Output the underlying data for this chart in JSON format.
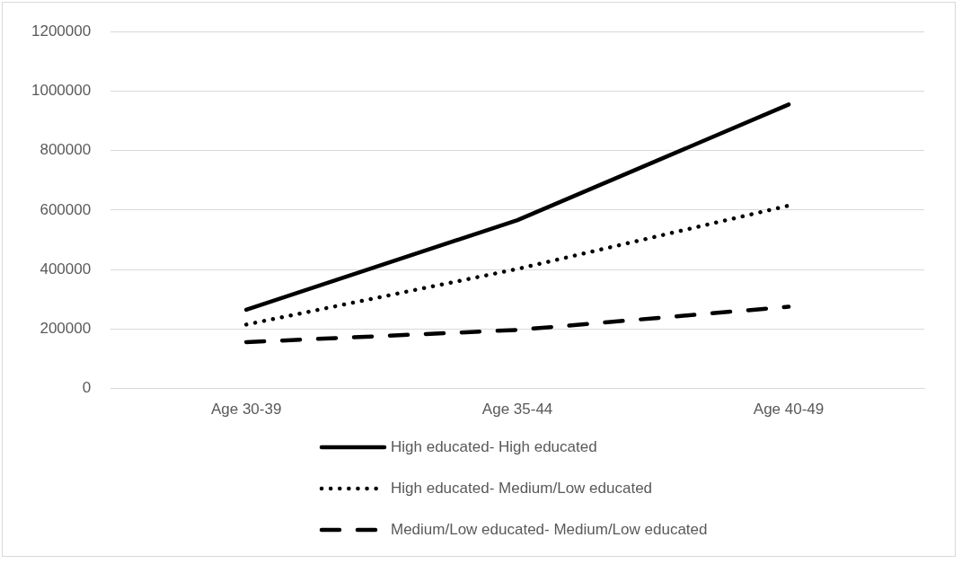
{
  "chart_data": {
    "type": "line",
    "categories": [
      "Age 30-39",
      "Age 35-44",
      "Age 40-49"
    ],
    "series": [
      {
        "name": "High educated- High educated",
        "color": "#000000",
        "line_style": "solid",
        "values": [
          265000,
          566000,
          955000
        ]
      },
      {
        "name": "High educated- Medium/Low educated",
        "color": "#000000",
        "line_style": "dotted",
        "values": [
          215000,
          402000,
          615000
        ]
      },
      {
        "name": "Medium/Low educated- Medium/Low educated",
        "color": "#000000",
        "line_style": "dashed",
        "values": [
          156000,
          197000,
          275000
        ]
      }
    ],
    "ylim": [
      0,
      1200000
    ],
    "yticks": [
      0,
      200000,
      400000,
      600000,
      800000,
      1000000,
      1200000
    ],
    "grid": "y",
    "legend": "bottom",
    "marker": "none"
  }
}
